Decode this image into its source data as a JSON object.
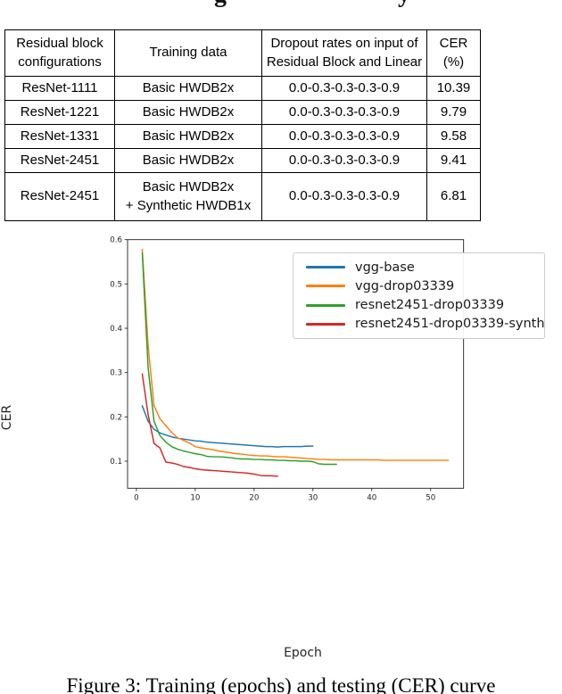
{
  "cropped_heading": {
    "fragments": [
      "g",
      "y"
    ]
  },
  "table": {
    "headers": [
      "Residual block\nconfigurations",
      "Training data",
      "Dropout rates on input of\nResidual Block and Linear",
      "CER\n(%)"
    ],
    "rows": [
      [
        "ResNet-1111",
        "Basic HWDB2x",
        "0.0-0.3-0.3-0.3-0.9",
        "10.39"
      ],
      [
        "ResNet-1221",
        "Basic HWDB2x",
        "0.0-0.3-0.3-0.3-0.9",
        "9.79"
      ],
      [
        "ResNet-1331",
        "Basic HWDB2x",
        "0.0-0.3-0.3-0.3-0.9",
        "9.58"
      ],
      [
        "ResNet-2451",
        "Basic HWDB2x",
        "0.0-0.3-0.3-0.3-0.9",
        "9.41"
      ],
      [
        "ResNet-2451",
        "Basic HWDB2x\n+ Synthetic HWDB1x",
        "0.0-0.3-0.3-0.3-0.9",
        "6.81"
      ]
    ]
  },
  "chart_data": {
    "type": "line",
    "title": "",
    "xlabel": "Epoch",
    "ylabel": "CER",
    "xlim": [
      -1.5,
      55.6
    ],
    "ylim": [
      0.039,
      0.6
    ],
    "xticks": [
      0,
      10,
      20,
      30,
      40,
      50
    ],
    "yticks": [
      0.1,
      0.2,
      0.3,
      0.4,
      0.5,
      0.6
    ],
    "grid": false,
    "legend_position": "upper right",
    "axis_color": "#262626",
    "series": [
      {
        "name": "vgg-base",
        "color": "#1f77b4",
        "x": [
          1,
          2,
          3,
          4,
          5,
          6,
          7,
          8,
          9,
          10,
          11,
          12,
          13,
          14,
          15,
          16,
          17,
          18,
          19,
          20,
          21,
          22,
          23,
          24,
          25,
          26,
          27,
          28,
          29,
          30
        ],
        "y": [
          0.225,
          0.19,
          0.172,
          0.164,
          0.159,
          0.155,
          0.152,
          0.15,
          0.148,
          0.146,
          0.145,
          0.143,
          0.142,
          0.141,
          0.14,
          0.139,
          0.138,
          0.137,
          0.136,
          0.135,
          0.134,
          0.133,
          0.133,
          0.132,
          0.133,
          0.133,
          0.133,
          0.133,
          0.134,
          0.134
        ]
      },
      {
        "name": "vgg-drop03339",
        "color": "#ff7f0e",
        "x": [
          1,
          2,
          3,
          4,
          5,
          6,
          7,
          8,
          9,
          10,
          11,
          12,
          13,
          14,
          15,
          16,
          17,
          18,
          19,
          20,
          21,
          22,
          23,
          24,
          25,
          26,
          27,
          28,
          29,
          30,
          31,
          32,
          33,
          34,
          35,
          36,
          37,
          38,
          39,
          40,
          41,
          42,
          43,
          44,
          45,
          46,
          47,
          48,
          49,
          50,
          51,
          52,
          53
        ],
        "y": [
          0.578,
          0.36,
          0.225,
          0.196,
          0.18,
          0.165,
          0.153,
          0.147,
          0.141,
          0.133,
          0.13,
          0.128,
          0.126,
          0.123,
          0.121,
          0.119,
          0.117,
          0.116,
          0.114,
          0.113,
          0.112,
          0.112,
          0.111,
          0.11,
          0.11,
          0.109,
          0.108,
          0.107,
          0.106,
          0.105,
          0.104,
          0.104,
          0.103,
          0.103,
          0.103,
          0.103,
          0.103,
          0.103,
          0.103,
          0.103,
          0.103,
          0.102,
          0.102,
          0.102,
          0.102,
          0.102,
          0.102,
          0.102,
          0.102,
          0.102,
          0.102,
          0.102,
          0.102
        ]
      },
      {
        "name": "resnet2451-drop03339",
        "color": "#2ca02c",
        "x": [
          1,
          2,
          3,
          4,
          5,
          6,
          7,
          8,
          9,
          10,
          11,
          12,
          13,
          14,
          15,
          16,
          17,
          18,
          19,
          20,
          21,
          22,
          23,
          24,
          25,
          26,
          27,
          28,
          29,
          30,
          31,
          32,
          33,
          34
        ],
        "y": [
          0.57,
          0.31,
          0.19,
          0.158,
          0.143,
          0.133,
          0.127,
          0.123,
          0.12,
          0.117,
          0.115,
          0.111,
          0.11,
          0.11,
          0.109,
          0.108,
          0.106,
          0.105,
          0.105,
          0.104,
          0.104,
          0.103,
          0.103,
          0.102,
          0.102,
          0.101,
          0.101,
          0.1,
          0.1,
          0.099,
          0.094,
          0.093,
          0.093,
          0.093
        ]
      },
      {
        "name": "resnet2451-drop03339-synth",
        "color": "#d62728",
        "x": [
          1,
          2,
          3,
          4,
          5,
          6,
          7,
          8,
          9,
          10,
          11,
          12,
          13,
          14,
          15,
          16,
          17,
          18,
          19,
          20,
          21,
          22,
          23,
          24
        ],
        "y": [
          0.297,
          0.205,
          0.14,
          0.13,
          0.098,
          0.096,
          0.093,
          0.088,
          0.086,
          0.083,
          0.081,
          0.08,
          0.079,
          0.078,
          0.077,
          0.076,
          0.075,
          0.074,
          0.073,
          0.071,
          0.068,
          0.067,
          0.067,
          0.066
        ]
      }
    ]
  },
  "caption": {
    "text": "Figure 3: Training (epochs) and testing (CER) curve"
  }
}
